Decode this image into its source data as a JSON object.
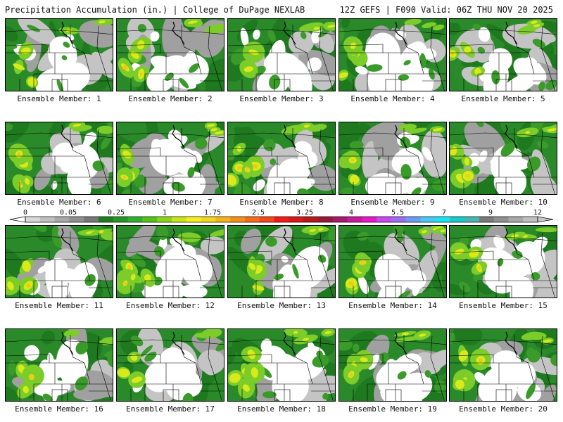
{
  "header": {
    "title": "Precipitation Accumulation (in.) | College of DuPage NEXLAB",
    "run_info": "12Z GEFS | F090 Valid: 06Z THU NOV 20 2025"
  },
  "members": [
    {
      "label": "Ensemble Member: 1"
    },
    {
      "label": "Ensemble Member: 2"
    },
    {
      "label": "Ensemble Member: 3"
    },
    {
      "label": "Ensemble Member: 4"
    },
    {
      "label": "Ensemble Member: 5"
    },
    {
      "label": "Ensemble Member: 6"
    },
    {
      "label": "Ensemble Member: 7"
    },
    {
      "label": "Ensemble Member: 8"
    },
    {
      "label": "Ensemble Member: 9"
    },
    {
      "label": "Ensemble Member: 10"
    },
    {
      "label": "Ensemble Member: 11"
    },
    {
      "label": "Ensemble Member: 12"
    },
    {
      "label": "Ensemble Member: 13"
    },
    {
      "label": "Ensemble Member: 14"
    },
    {
      "label": "Ensemble Member: 15"
    },
    {
      "label": "Ensemble Member: 16"
    },
    {
      "label": "Ensemble Member: 17"
    },
    {
      "label": "Ensemble Member: 18"
    },
    {
      "label": "Ensemble Member: 19"
    },
    {
      "label": "Ensemble Member: 20"
    }
  ],
  "colorbar": {
    "tick_labels": [
      "0",
      "0.05",
      "0.25",
      "1",
      "1.75",
      "2.5",
      "3.25",
      "4",
      "5.5",
      "7",
      "9",
      "12"
    ],
    "colors": [
      "#d8d8d8",
      "#c0c0c0",
      "#a8a8a8",
      "#909090",
      "#787878",
      "#1e7e1e",
      "#249624",
      "#2eb02e",
      "#56c21a",
      "#8cd41a",
      "#c8e41a",
      "#f2f21a",
      "#f2d81a",
      "#f2b41a",
      "#f2901a",
      "#f26c1a",
      "#f2481a",
      "#f21a1a",
      "#d41a1a",
      "#b41a1a",
      "#941a3c",
      "#a41a6c",
      "#c41a9c",
      "#e41ac8",
      "#c848f2",
      "#9c6cf2",
      "#6c9cf2",
      "#48c8f2",
      "#1ae4f2",
      "#1ac8c8",
      "#4ab4b4",
      "#7a7a7a",
      "#909090",
      "#a8a8a8",
      "#c0c0c0"
    ]
  }
}
